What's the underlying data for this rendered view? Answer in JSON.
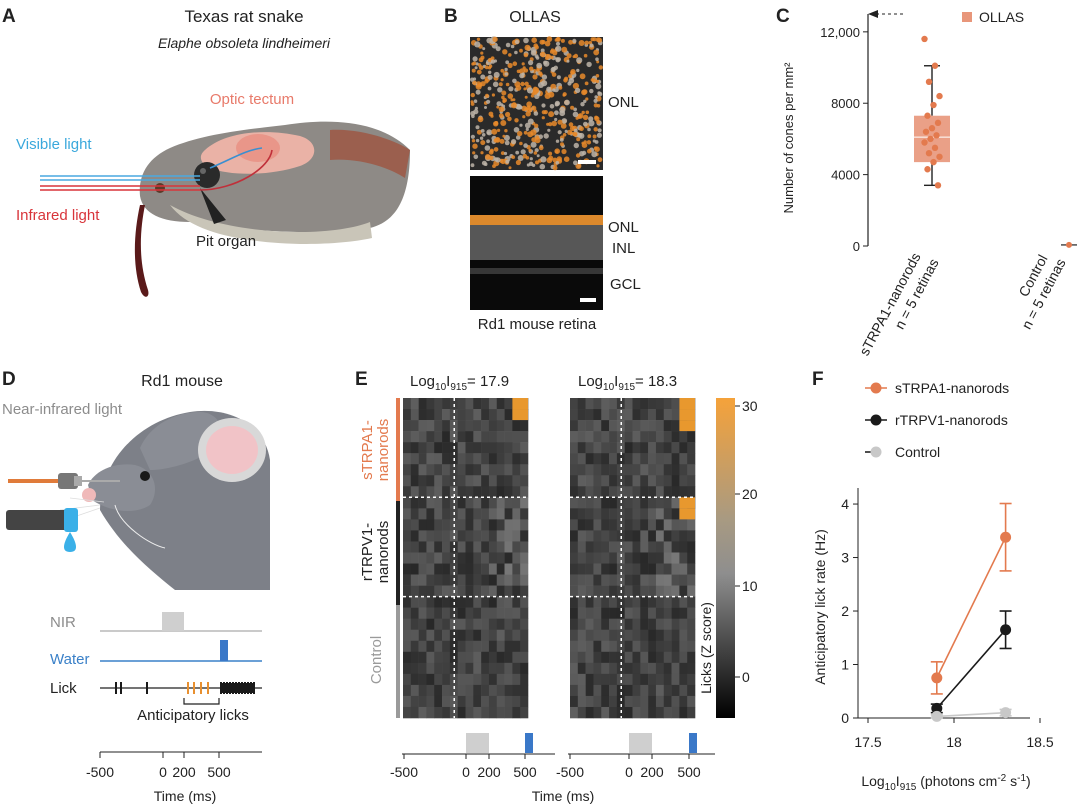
{
  "panel_A": {
    "letter": "A",
    "title": "Texas rat snake",
    "species": "Elaphe obsoleta lindheimeri",
    "label_tectum": "Optic tectum",
    "label_visible": "Visible light",
    "label_infrared": "Infrared light",
    "label_pit": "Pit organ"
  },
  "panel_B": {
    "letter": "B",
    "title": "OLLAS",
    "top_layer": "ONL",
    "bottom_layers": [
      "ONL",
      "INL",
      "GCL"
    ],
    "caption": "Rd1 mouse retina"
  },
  "panel_D": {
    "letter": "D",
    "title": "Rd1 mouse",
    "label_nir_light": "Near-infrared light",
    "trace_labels": [
      "NIR",
      "Water",
      "Lick"
    ],
    "anticipatory_label": "Anticipatory licks",
    "x_ticks": [
      "-500",
      "0",
      "200",
      "500"
    ],
    "x_title": "Time (ms)"
  },
  "panel_E": {
    "letter": "E",
    "log_label": "Log",
    "sub_10": "10",
    "i_label": "I",
    "sub_915": "915",
    "intensity_left": "= 17.9",
    "intensity_right": "= 18.3",
    "groups": [
      {
        "label_line1": "sTRPA1-",
        "label_line2": "nanorods",
        "color": "#e37a4e"
      },
      {
        "label_line1": "rTRPV1-",
        "label_line2": "nanorods",
        "color": "#222222"
      },
      {
        "label_line1": "Control",
        "label_line2": "",
        "color": "#9a9a9a"
      }
    ],
    "colorbar_ticks": [
      "30",
      "20",
      "10",
      "0"
    ],
    "colorbar_title": "Licks (Z score)",
    "x_ticks": [
      "-500",
      "0",
      "200",
      "500"
    ],
    "x_title": "Time (ms)"
  },
  "chart_data": [
    {
      "panel": "C",
      "type": "box",
      "ylabel": "Number of cones per mm²",
      "ylim": [
        0,
        13000
      ],
      "yticks": [
        "0",
        "4000",
        "8000",
        "12,000"
      ],
      "legend": "OLLAS",
      "categories": [
        "sTRPA1-nanorods\nn = 5 retinas",
        "Control\nn = 5 retinas"
      ],
      "category_lines": [
        [
          "sTRPA1-nanorods",
          "n = 5 retinas"
        ],
        [
          "Control",
          "n = 5 retinas"
        ]
      ],
      "box_sTRPA1": {
        "min": 3400,
        "q1": 4700,
        "median": 6100,
        "q3": 7300,
        "max": 10100
      },
      "points_sTRPA1": [
        11600,
        10100,
        9200,
        8400,
        7900,
        7300,
        6900,
        6600,
        6400,
        6200,
        6000,
        5800,
        5500,
        5200,
        5000,
        4700,
        4300,
        3400
      ],
      "control_value": 60,
      "arrow_value": 13000,
      "color": "#e8967a"
    },
    {
      "panel": "F",
      "type": "line",
      "xlabel_prefix": "Log",
      "xlabel_sub1": "10",
      "xlabel_mid": "I",
      "xlabel_sub2": "915",
      "xlabel_suffix": " (photons cm",
      "xlabel_sup": "-2",
      "xlabel_end": " s",
      "xlabel_sup2": "-1",
      "xlabel_close": ")",
      "ylabel": "Anticipatory lick rate (Hz)",
      "xlim": [
        17.5,
        18.5
      ],
      "ylim": [
        0,
        4.3
      ],
      "xticks": [
        "17.5",
        "18",
        "18.5"
      ],
      "yticks": [
        "0",
        "1",
        "2",
        "3",
        "4"
      ],
      "x": [
        17.9,
        18.3
      ],
      "series": [
        {
          "name": "sTRPA1-nanorods",
          "values": [
            0.75,
            3.38
          ],
          "err": [
            0.3,
            0.63
          ],
          "color": "#e37a4e"
        },
        {
          "name": "rTRPV1-nanorods",
          "values": [
            0.18,
            1.65
          ],
          "err": [
            0.08,
            0.35
          ],
          "color": "#1a1a1a"
        },
        {
          "name": "Control",
          "values": [
            0.03,
            0.1
          ],
          "err": [
            0.03,
            0.06
          ],
          "color": "#c8c8c8"
        }
      ]
    }
  ]
}
